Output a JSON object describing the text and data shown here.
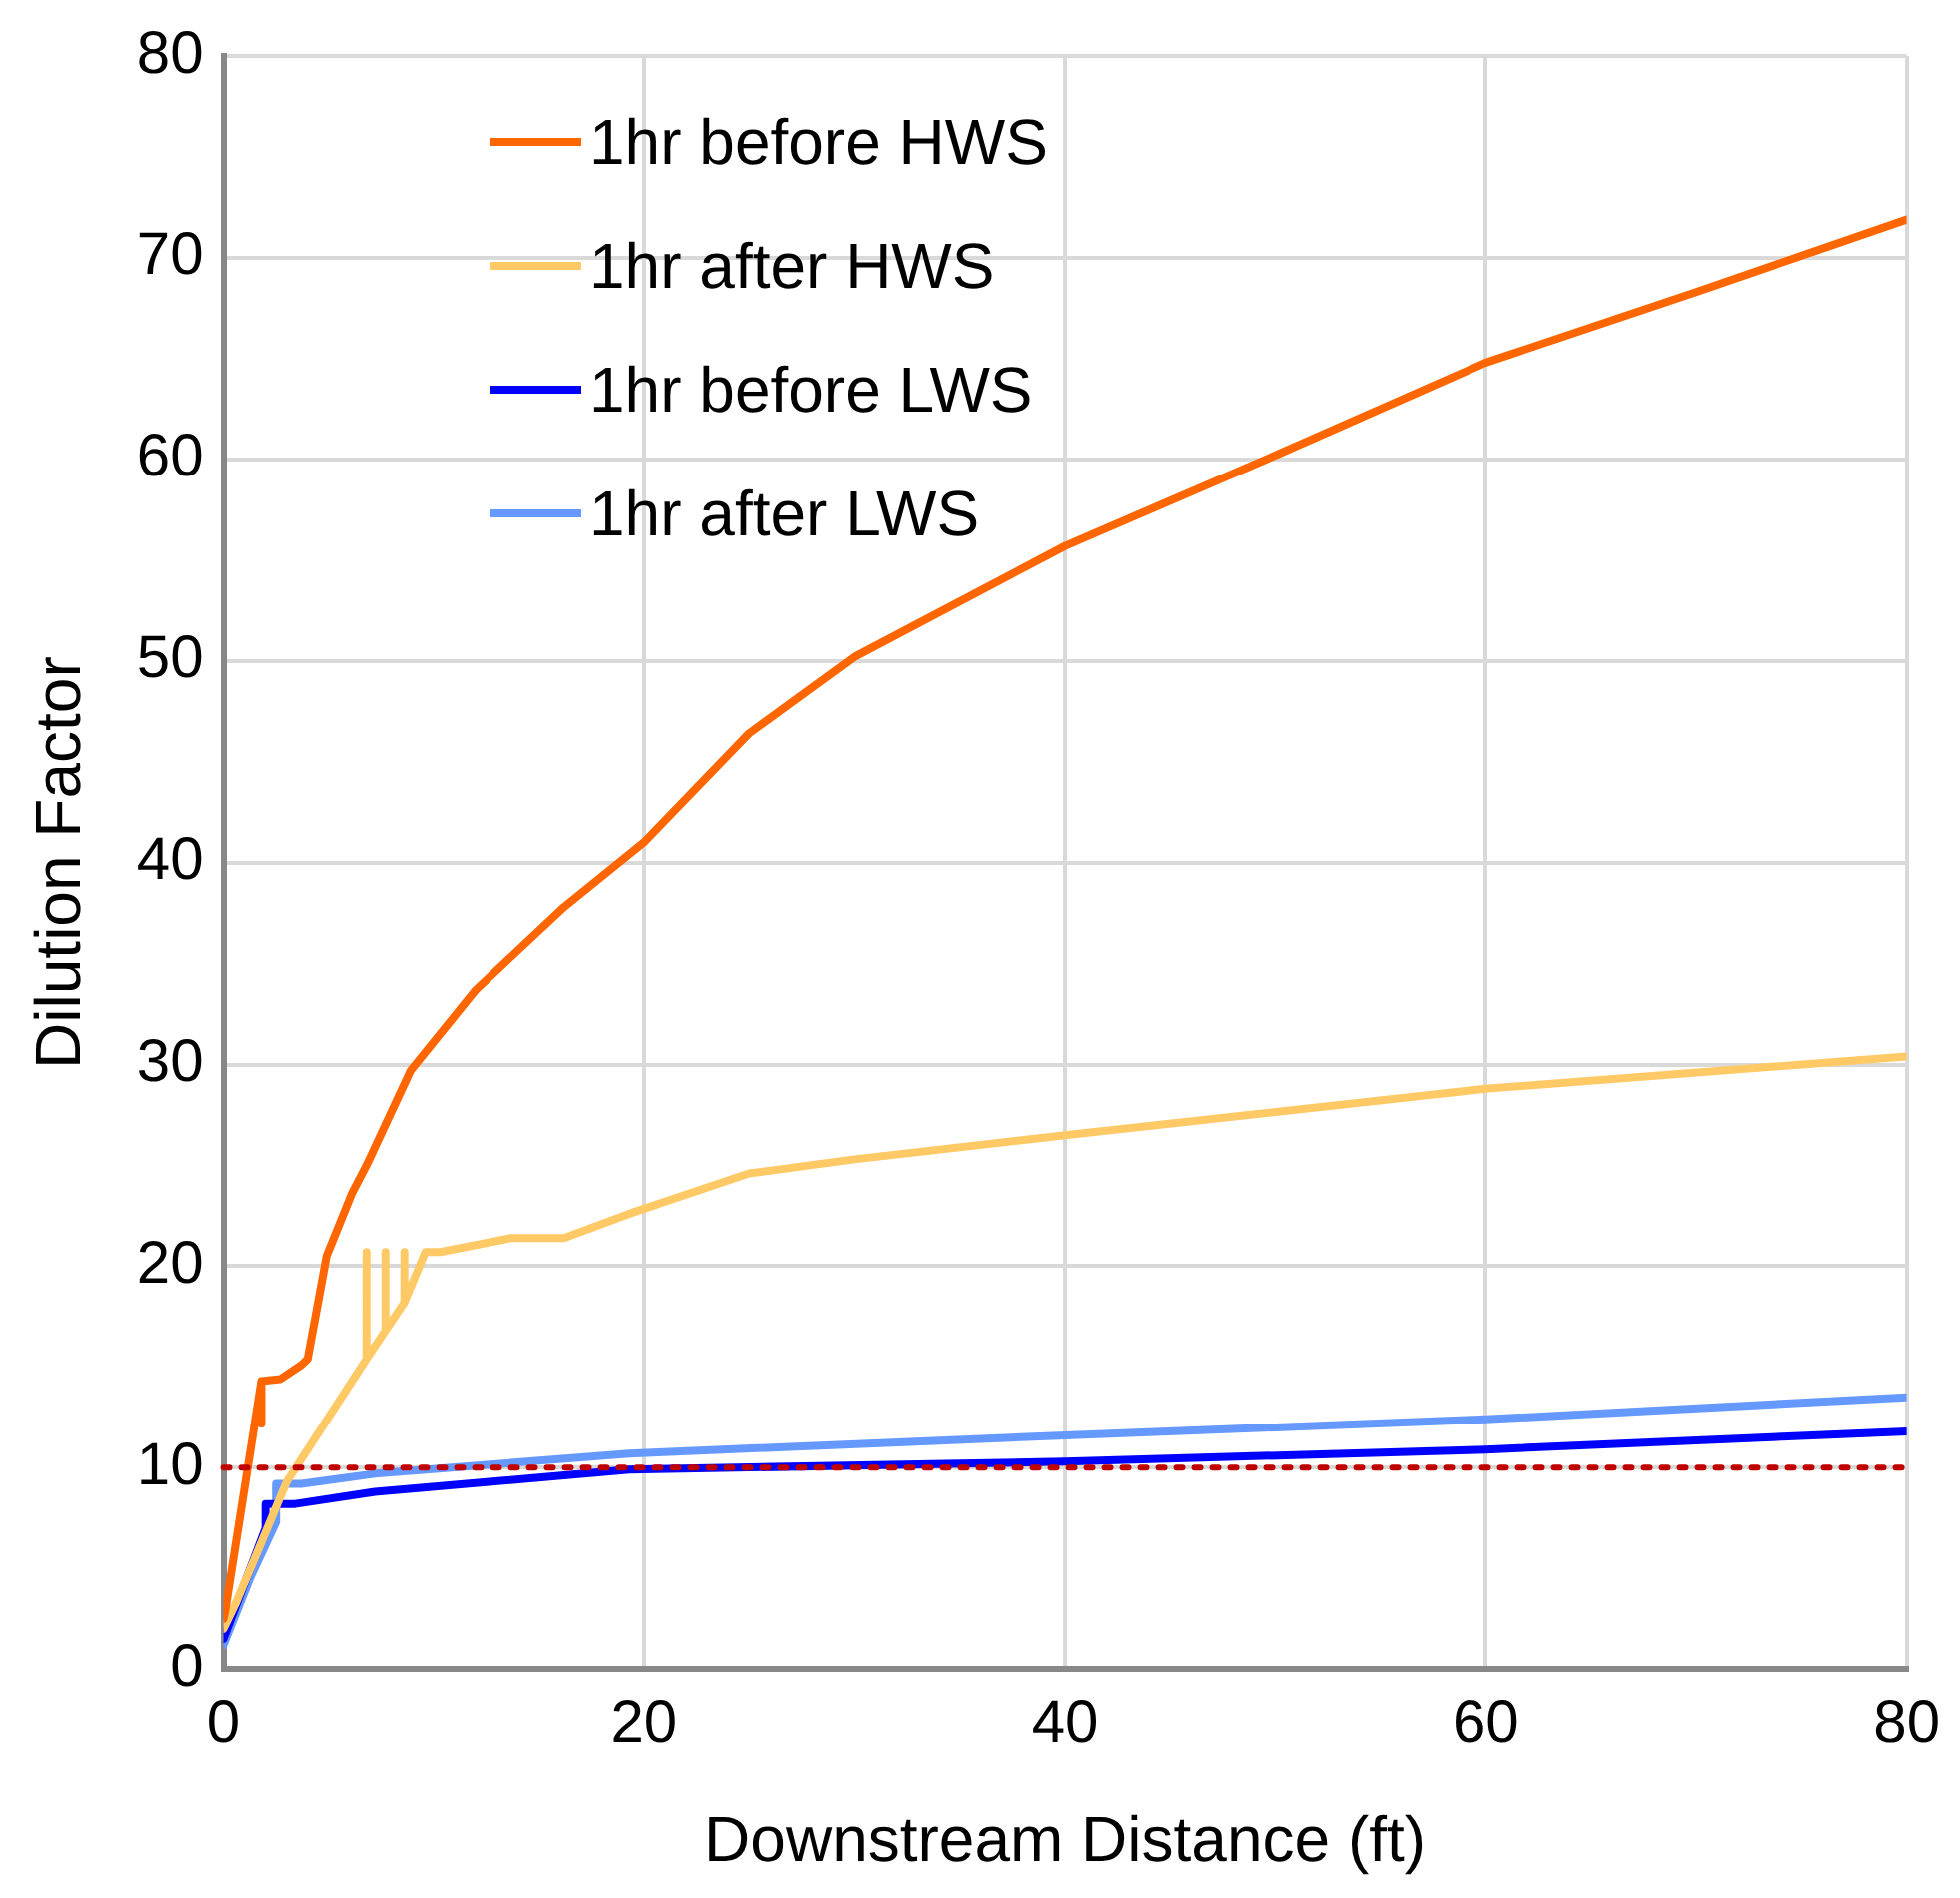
{
  "chart_data": {
    "type": "line",
    "xlabel": "Downstream Distance (ft)",
    "ylabel": "Dilution Factor",
    "xlim": [
      0,
      80
    ],
    "xticks": [
      0,
      20,
      40,
      60,
      80
    ],
    "ylim": [
      0,
      80
    ],
    "yticks": [
      0,
      10,
      20,
      30,
      40,
      50,
      60,
      70,
      80
    ],
    "grid": true,
    "legend": "top left",
    "marker": "none",
    "line_style": "solid",
    "ref_lines": [
      {
        "axis": "y",
        "value": 10,
        "color": "#c00000",
        "line_style": "dotted"
      }
    ],
    "series": [
      {
        "name": "1hr before HWS",
        "color": "#ff6600",
        "x": [
          0,
          0.1,
          1.8,
          1.8,
          1.8,
          2.7,
          3.7,
          4.0,
          4.9,
          6.1,
          6.8,
          8.9,
          12,
          16.2,
          20,
          25,
          30,
          40,
          50,
          60,
          70,
          80
        ],
        "values": [
          2.5,
          3,
          14.3,
          12.2,
          14.3,
          14.4,
          15.1,
          15.4,
          20.5,
          23.6,
          25,
          29.7,
          33.7,
          37.8,
          41,
          46.4,
          50.2,
          55.7,
          60.2,
          64.8,
          68.3,
          71.9
        ]
      },
      {
        "name": "1hr after HWS",
        "color": "#ffc966",
        "x": [
          0,
          0.6,
          3.0,
          6.8,
          6.8,
          6.8,
          7.7,
          7.7,
          7.7,
          8.6,
          8.6,
          8.6,
          9.6,
          10.3,
          13.7,
          16.2,
          19.3,
          25,
          30,
          40,
          60,
          80
        ],
        "values": [
          2,
          3.3,
          9.3,
          15.4,
          20.7,
          15.4,
          16.8,
          20.7,
          16.8,
          18.2,
          20.7,
          18.2,
          20.7,
          20.7,
          21.4,
          21.4,
          22.6,
          24.6,
          25.3,
          26.5,
          28.8,
          30.4
        ]
      },
      {
        "name": "1hr before LWS",
        "color": "#0000ff",
        "x": [
          0,
          2.0,
          2.0,
          3.4,
          7.2,
          19.3,
          40,
          60,
          80
        ],
        "values": [
          1.5,
          7,
          8.2,
          8.2,
          8.8,
          9.9,
          10.3,
          10.9,
          11.8
        ]
      },
      {
        "name": "1hr after LWS",
        "color": "#6699ff",
        "x": [
          0,
          1.3,
          2.5,
          2.5,
          3.7,
          7.2,
          19.3,
          40,
          60,
          80
        ],
        "values": [
          1.2,
          4.6,
          7.3,
          9.2,
          9.2,
          9.7,
          10.7,
          11.6,
          12.4,
          13.5
        ]
      }
    ]
  }
}
